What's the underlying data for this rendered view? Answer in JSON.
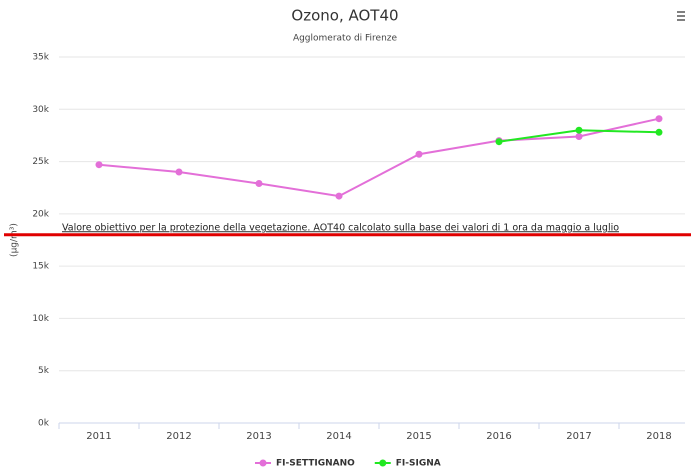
{
  "chart_data": {
    "type": "line",
    "title": "Ozono, AOT40",
    "subtitle": "Agglomerato di Firenze",
    "y_label": "(µg/m³)",
    "categories": [
      "2011",
      "2012",
      "2013",
      "2014",
      "2015",
      "2016",
      "2017",
      "2018"
    ],
    "series": [
      {
        "name": "FI-SETTIGNANO",
        "color": "#e36fd8",
        "values": [
          24700,
          24000,
          22900,
          21700,
          25700,
          27000,
          27400,
          29100
        ]
      },
      {
        "name": "FI-SIGNA",
        "color": "#22e822",
        "values": [
          null,
          null,
          null,
          null,
          null,
          26900,
          28000,
          27800
        ]
      }
    ],
    "ylim": [
      0,
      35000
    ],
    "yticks": [
      {
        "value": 0,
        "label": "0k"
      },
      {
        "value": 5000,
        "label": "5k"
      },
      {
        "value": 10000,
        "label": "10k"
      },
      {
        "value": 15000,
        "label": "15k"
      },
      {
        "value": 20000,
        "label": "20k"
      },
      {
        "value": 25000,
        "label": "25k"
      },
      {
        "value": 30000,
        "label": "30k"
      },
      {
        "value": 35000,
        "label": "35k"
      }
    ],
    "grid": true,
    "plot_line": {
      "value": 18000,
      "color": "#e00000",
      "label": "Valore obiettivo per la protezione della vegetazione. AOT40 calcolato sulla base dei valori di 1 ora da maggio a luglio"
    },
    "legend": "bottom"
  }
}
